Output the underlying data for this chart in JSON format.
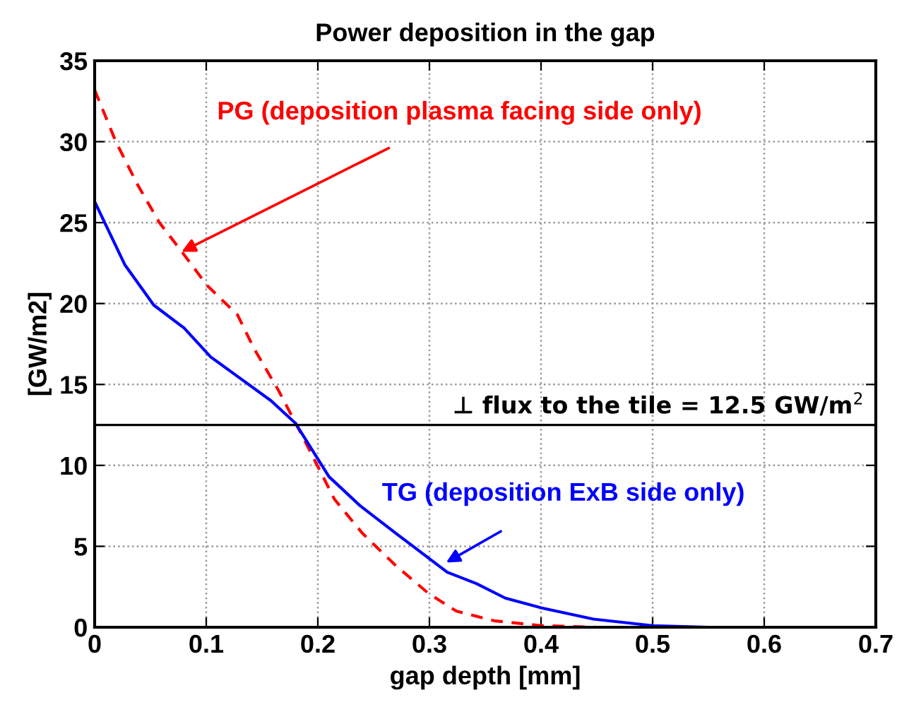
{
  "chart_data": {
    "type": "line",
    "title": "Power deposition in the gap",
    "xlabel": "gap depth [mm]",
    "ylabel": "[GW/m2]",
    "xlim": [
      0,
      0.7
    ],
    "xticks": [
      0,
      0.1,
      0.2,
      0.3,
      0.4,
      0.5,
      0.6,
      0.7
    ],
    "ylim": [
      0,
      35
    ],
    "yticks": [
      0,
      5,
      10,
      15,
      20,
      25,
      30,
      35
    ],
    "grid": true,
    "series": [
      {
        "color": "#ff0000",
        "line_style": "dashed",
        "x": [
          0,
          0.019,
          0.038,
          0.058,
          0.077,
          0.101,
          0.128,
          0.143,
          0.165,
          0.184,
          0.198,
          0.215,
          0.24,
          0.27,
          0.299,
          0.324,
          0.358,
          0.4,
          0.45,
          0.5
        ],
        "values": [
          33.2,
          30.0,
          27.4,
          25.0,
          23.3,
          21.1,
          19.3,
          17.2,
          14.6,
          12.1,
          10.2,
          7.9,
          5.8,
          3.8,
          2.1,
          1.0,
          0.4,
          0.1,
          0,
          0
        ]
      },
      {
        "color": "#0000ff",
        "line_style": "solid",
        "x": [
          0,
          0.027,
          0.053,
          0.08,
          0.104,
          0.13,
          0.158,
          0.18,
          0.21,
          0.238,
          0.27,
          0.316,
          0.342,
          0.368,
          0.4,
          0.447,
          0.5,
          0.55,
          0.6,
          0.7
        ],
        "values": [
          26.3,
          22.4,
          19.9,
          18.5,
          16.7,
          15.4,
          14.0,
          12.6,
          9.3,
          7.5,
          5.8,
          3.4,
          2.7,
          1.8,
          1.2,
          0.5,
          0.1,
          0.0,
          0,
          0
        ]
      }
    ],
    "ref_lines": [
      {
        "axis": "y",
        "value": 12.5,
        "label": "⊥ flux to the tile = 12.5 GW/m$^{2}$",
        "color": "#000000",
        "line_style": "solid"
      }
    ],
    "annotations": [
      {
        "text": "PG (deposition plasma facing side only)",
        "x": 0.078,
        "y": 23.2
      },
      {
        "text": "TG (deposition ExB side only)",
        "x": 0.315,
        "y": 4.0
      }
    ]
  }
}
